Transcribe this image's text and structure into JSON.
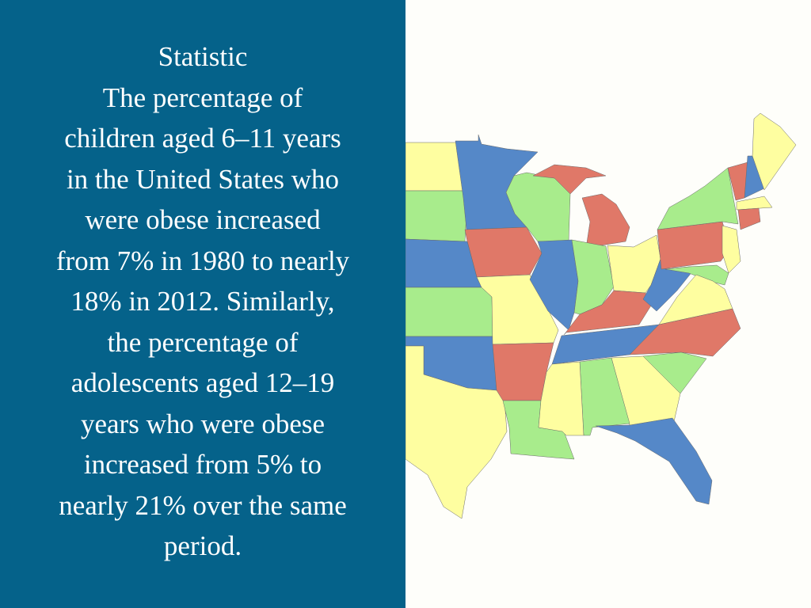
{
  "slide": {
    "heading": "Statistic",
    "body_lines": [
      "The percentage of",
      "children aged 6–11 years",
      "in the United States who",
      "were obese increased",
      "from 7% in 1980 to nearly",
      "18% in 2012. Similarly,",
      "the percentage of",
      "adolescents aged 12–19",
      "years who were obese",
      "increased from 5% to",
      "nearly 21% over the same",
      "period."
    ]
  },
  "colors": {
    "panel": "#05628a",
    "text": "#ffffff",
    "background": "#fefefa",
    "map_blue": "#5588c8",
    "map_red": "#e07868",
    "map_green": "#a8ec8c",
    "map_yellow": "#fefea0"
  },
  "map": {
    "image": "eastern-us-states-map"
  }
}
